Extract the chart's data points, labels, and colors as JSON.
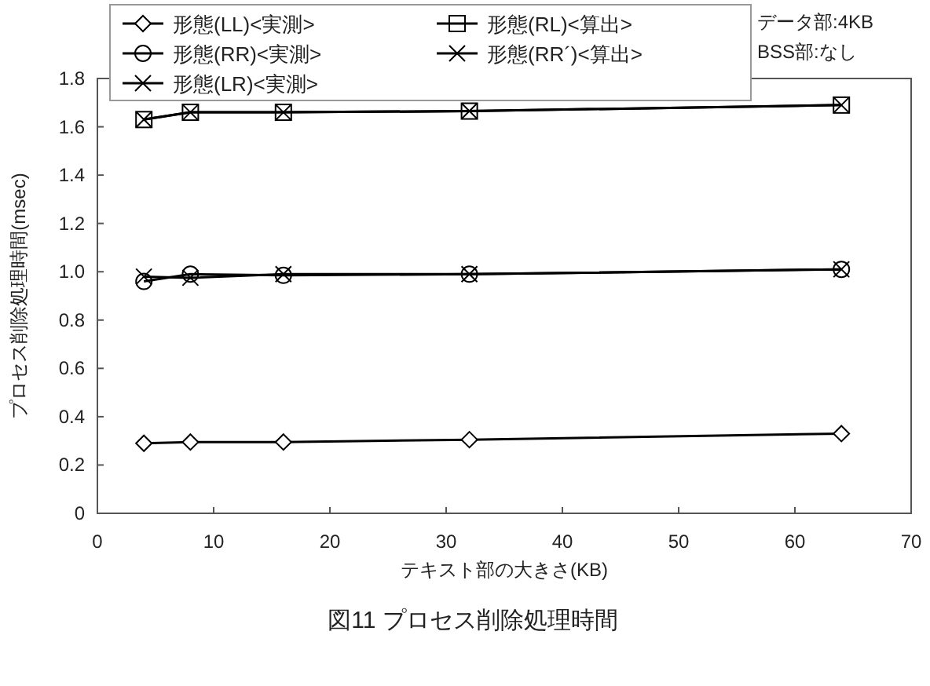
{
  "chart_data": {
    "type": "line",
    "title": "図11 プロセス削除処理時間",
    "xlabel": "テキスト部の大きさ(KB)",
    "ylabel": "プロセス削除処理時間(msec)",
    "annotations": [
      "データ部:4KB",
      "BSS部:なし"
    ],
    "x": [
      4,
      8,
      16,
      32,
      64
    ],
    "series": [
      {
        "name": "形態(LL)<実測>",
        "color": "#000000",
        "marker": "diamond",
        "values": [
          0.29,
          0.295,
          0.295,
          0.305,
          0.33
        ]
      },
      {
        "name": "形態(RL)<算出>",
        "color": "#000000",
        "marker": "square",
        "values": [
          1.63,
          1.66,
          1.66,
          1.665,
          1.69
        ]
      },
      {
        "name": "形態(RR)<実測>",
        "color": "#000000",
        "marker": "circle",
        "values": [
          0.96,
          0.99,
          0.985,
          0.99,
          1.01
        ]
      },
      {
        "name": "形態(RR´)<算出>",
        "color": "#000000",
        "marker": "cross",
        "values": [
          1.63,
          1.66,
          1.66,
          1.665,
          1.69
        ]
      },
      {
        "name": "形態(LR)<実測>",
        "color": "#000000",
        "marker": "cross",
        "values": [
          0.98,
          0.975,
          0.99,
          0.99,
          1.01
        ]
      }
    ],
    "xlim": [
      0,
      70
    ],
    "xticks": [
      0,
      10,
      20,
      30,
      40,
      50,
      60,
      70
    ],
    "ylim": [
      0,
      1.8
    ],
    "yticks": [
      0,
      0.2,
      0.4,
      0.6,
      0.8,
      {
        "value": 1.0,
        "label": "1.0"
      },
      1.2,
      1.4,
      1.6,
      1.8
    ],
    "grid": false,
    "legend": "top",
    "line_style": "solid"
  }
}
